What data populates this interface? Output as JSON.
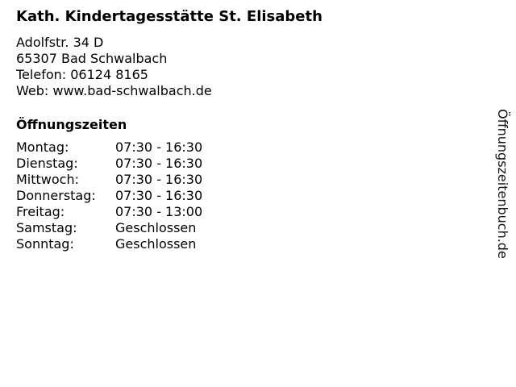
{
  "title": "Kath. Kindertagesstätte St. Elisabeth",
  "address": {
    "street": "Adolfstr. 34 D",
    "city": "65307 Bad Schwalbach",
    "phone": "Telefon: 06124 8165",
    "web": "Web: www.bad-schwalbach.de"
  },
  "hours_heading": "Öffnungszeiten",
  "hours": [
    {
      "day": "Montag:",
      "time": "07:30 - 16:30"
    },
    {
      "day": "Dienstag:",
      "time": "07:30 - 16:30"
    },
    {
      "day": "Mittwoch:",
      "time": "07:30 - 16:30"
    },
    {
      "day": "Donnerstag:",
      "time": "07:30 - 16:30"
    },
    {
      "day": "Freitag:",
      "time": "07:30 - 13:00"
    },
    {
      "day": "Samstag:",
      "time": "Geschlossen"
    },
    {
      "day": "Sonntag:",
      "time": "Geschlossen"
    }
  ],
  "watermark": "Öffnungszeitenbuch.de"
}
